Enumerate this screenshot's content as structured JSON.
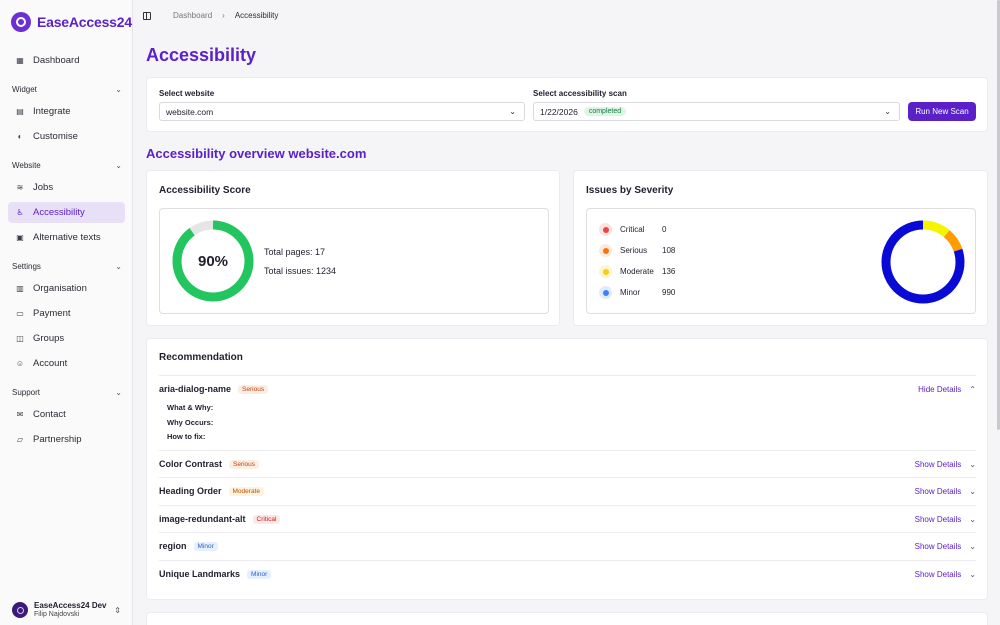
{
  "brand": {
    "name": "EaseAccess24"
  },
  "nav": {
    "dashboard": "Dashboard",
    "widget_section": "Widget",
    "integrate": "Integrate",
    "customise": "Customise",
    "website_section": "Website",
    "jobs": "Jobs",
    "accessibility": "Accessibility",
    "alt_texts": "Alternative texts",
    "settings_section": "Settings",
    "organisation": "Organisation",
    "payment": "Payment",
    "groups": "Groups",
    "account": "Account",
    "support_section": "Support",
    "contact": "Contact",
    "partnership": "Partnership"
  },
  "user": {
    "name": "EaseAccess24 Dev",
    "sub": "Filip Najdovski"
  },
  "breadcrumb": {
    "parent": "Dashboard",
    "separator": "›",
    "current": "Accessibility"
  },
  "page": {
    "title": "Accessibility",
    "overview_title": "Accessibility overview website.com"
  },
  "selectors": {
    "website_label": "Select website",
    "website_value": "website.com",
    "scan_label": "Select accessibility scan",
    "scan_value": "1/22/2026",
    "scan_status": "completed",
    "run_button": "Run New Scan"
  },
  "score": {
    "title": "Accessibility Score",
    "percent_label": "90%",
    "percent": 90,
    "pages_text": "Total pages: 17",
    "issues_text": "Total issues: 1234",
    "color": "#22c55e",
    "track_color": "#e5e5e5"
  },
  "severity": {
    "title": "Issues by Severity",
    "items": [
      {
        "name": "Critical",
        "count": 0,
        "color": "#ef4444",
        "bg": "#fde2e2"
      },
      {
        "name": "Serious",
        "count": 108,
        "color": "#f97316",
        "bg": "#feeadb"
      },
      {
        "name": "Moderate",
        "count": 136,
        "color": "#facc15",
        "bg": "#fdf5d0"
      },
      {
        "name": "Minor",
        "count": 990,
        "color": "#3b82f6",
        "bg": "#e0ebfd"
      }
    ],
    "donut_colors": {
      "minor": "#0a0ad6",
      "moderate": "#f5f500",
      "serious": "#ff9d00"
    }
  },
  "recommendations": {
    "title": "Recommendation",
    "items": [
      {
        "name": "aria-dialog-name",
        "severity": "Serious",
        "toggle": "Hide Details",
        "expanded": true
      },
      {
        "name": "Color Contrast",
        "severity": "Serious",
        "toggle": "Show Details",
        "expanded": false
      },
      {
        "name": "Heading Order",
        "severity": "Moderate",
        "toggle": "Show Details",
        "expanded": false
      },
      {
        "name": "image-redundant-alt",
        "severity": "Critical",
        "toggle": "Show Details",
        "expanded": false
      },
      {
        "name": "region",
        "severity": "Minor",
        "toggle": "Show Details",
        "expanded": false
      },
      {
        "name": "Unique Landmarks",
        "severity": "Minor",
        "toggle": "Show Details",
        "expanded": false
      }
    ],
    "details": {
      "what_why": "What & Why:",
      "why_occurs": "Why Occurs:",
      "how_to_fix": "How to fix:"
    }
  }
}
